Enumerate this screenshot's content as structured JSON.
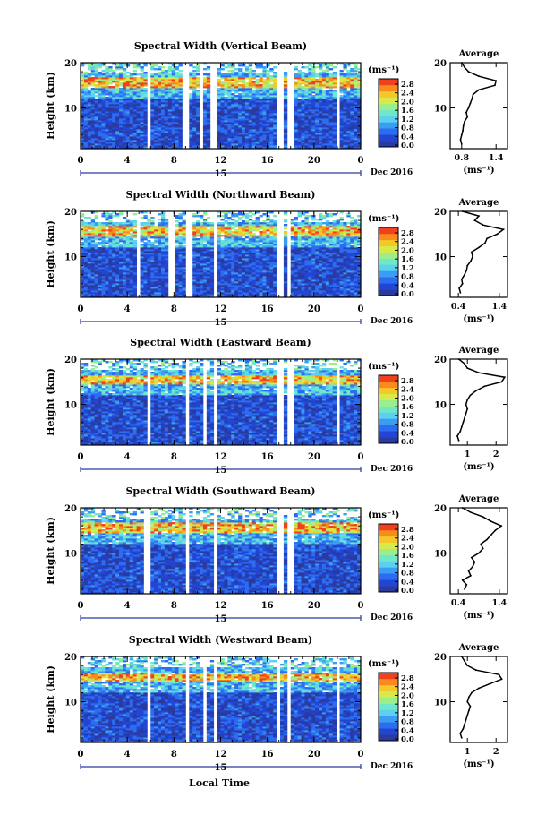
{
  "colors": {
    "colormap": [
      "#2a3a9e",
      "#2246d4",
      "#2c6cf0",
      "#3a9cf2",
      "#5cd0f0",
      "#6ee8c8",
      "#9cee8a",
      "#d8ea4a",
      "#f4c828",
      "#f88a1e",
      "#f0401c"
    ],
    "background": "#ffffff"
  },
  "icons": {
    "axis_arrow": "dash-arrow-icon"
  },
  "shared": {
    "day_label": "15",
    "date_label": "Dec 2016",
    "bottom_xlabel": "Local Time"
  },
  "chart_data": [
    {
      "type": "heatmap",
      "title": "Spectral Width (Vertical Beam)",
      "ylabel": "Height (km)",
      "x_ticks": [
        "0",
        "4",
        "8",
        "12",
        "16",
        "20",
        "0"
      ],
      "xlim": [
        0,
        24
      ],
      "y_ticks": [
        "10",
        "20"
      ],
      "ylim": [
        1,
        20
      ],
      "gaps_hours": [
        [
          5.6,
          6.0
        ],
        [
          8.8,
          9.3
        ],
        [
          10.2,
          10.6
        ],
        [
          11.2,
          11.6
        ],
        [
          16.9,
          17.3
        ],
        [
          17.8,
          18.3
        ],
        [
          21.9,
          22.3
        ]
      ],
      "high_band_km": [
        14.5,
        16.8
      ],
      "colorbar": {
        "unit": "(ms⁻¹)",
        "ticks": [
          "0.0",
          "0.4",
          "0.8",
          "1.2",
          "1.6",
          "2.0",
          "2.4",
          "2.8"
        ]
      },
      "average": {
        "title": "Average",
        "xlabel": "(ms⁻¹)",
        "x_ticks": [
          "0.8",
          "1.4"
        ],
        "y_ticks": [
          "10",
          "20"
        ],
        "xlim": [
          0.6,
          1.6
        ],
        "heights_km": [
          2,
          3,
          4,
          5,
          6,
          7,
          8,
          9,
          10,
          11,
          12,
          13,
          14,
          15,
          16,
          17,
          18,
          19,
          20
        ],
        "values": [
          0.8,
          0.78,
          0.8,
          0.82,
          0.83,
          0.85,
          0.9,
          0.88,
          0.92,
          0.95,
          0.98,
          1.0,
          1.1,
          1.38,
          1.4,
          1.1,
          0.92,
          0.85,
          0.8
        ]
      }
    },
    {
      "type": "heatmap",
      "title": "Spectral Width (Northward Beam)",
      "ylabel": "Height (km)",
      "x_ticks": [
        "0",
        "4",
        "8",
        "12",
        "16",
        "20",
        "0"
      ],
      "xlim": [
        0,
        24
      ],
      "y_ticks": [
        "10",
        "20"
      ],
      "ylim": [
        1,
        20
      ],
      "gaps_hours": [
        [
          4.7,
          5.0
        ],
        [
          7.6,
          8.0
        ],
        [
          9.1,
          9.5
        ],
        [
          11.4,
          11.8
        ],
        [
          16.9,
          17.3
        ],
        [
          17.8,
          18.1
        ]
      ],
      "high_band_km": [
        14.5,
        17.0
      ],
      "colorbar": {
        "unit": "(ms⁻¹)",
        "ticks": [
          "0.0",
          "0.4",
          "0.8",
          "1.2",
          "1.6",
          "2.0",
          "2.4",
          "2.8"
        ]
      },
      "average": {
        "title": "Average",
        "xlabel": "(ms⁻¹)",
        "x_ticks": [
          "0.4",
          "1.4"
        ],
        "y_ticks": [
          "10",
          "20"
        ],
        "xlim": [
          0.2,
          1.6
        ],
        "heights_km": [
          2,
          3,
          4,
          5,
          6,
          7,
          8,
          9,
          10,
          11,
          12,
          13,
          14,
          15,
          16,
          17,
          18,
          19,
          20
        ],
        "values": [
          0.45,
          0.42,
          0.5,
          0.48,
          0.55,
          0.6,
          0.62,
          0.7,
          0.75,
          0.72,
          0.9,
          1.05,
          1.1,
          1.35,
          1.5,
          1.0,
          0.8,
          0.9,
          0.5
        ]
      }
    },
    {
      "type": "heatmap",
      "title": "Spectral Width (Eastward Beam)",
      "ylabel": "Height (km)",
      "x_ticks": [
        "0",
        "4",
        "8",
        "12",
        "16",
        "20",
        "0"
      ],
      "xlim": [
        0,
        24
      ],
      "y_ticks": [
        "10",
        "20"
      ],
      "ylim": [
        1,
        20
      ],
      "gaps_hours": [
        [
          5.7,
          6.0
        ],
        [
          9.1,
          9.4
        ],
        [
          10.4,
          10.7
        ],
        [
          11.5,
          11.8
        ],
        [
          16.9,
          17.3
        ],
        [
          17.8,
          18.2
        ],
        [
          21.8,
          22.1
        ]
      ],
      "high_band_km": [
        14.5,
        16.5
      ],
      "colorbar": {
        "unit": "(ms⁻¹)",
        "ticks": [
          "0.0",
          "0.4",
          "0.8",
          "1.2",
          "1.6",
          "2.0",
          "2.4",
          "2.8"
        ]
      },
      "average": {
        "title": "Average",
        "xlabel": "(ms⁻¹)",
        "x_ticks": [
          "1",
          "2"
        ],
        "y_ticks": [
          "10",
          "20"
        ],
        "xlim": [
          0.4,
          2.4
        ],
        "heights_km": [
          2,
          3,
          4,
          5,
          6,
          7,
          8,
          9,
          10,
          11,
          12,
          13,
          14,
          15,
          16,
          17,
          18,
          19,
          20
        ],
        "values": [
          0.7,
          0.65,
          0.75,
          0.8,
          0.85,
          0.9,
          0.95,
          1.0,
          0.95,
          1.0,
          1.1,
          1.3,
          1.6,
          2.2,
          2.3,
          1.4,
          1.0,
          0.9,
          0.7
        ]
      }
    },
    {
      "type": "heatmap",
      "title": "Spectral Width (Southward Beam)",
      "ylabel": "Height (km)",
      "x_ticks": [
        "0",
        "4",
        "8",
        "12",
        "16",
        "20",
        "0"
      ],
      "xlim": [
        0,
        24
      ],
      "y_ticks": [
        "10",
        "20"
      ],
      "ylim": [
        1,
        20
      ],
      "gaps_hours": [
        [
          5.5,
          5.9
        ],
        [
          9.0,
          9.3
        ],
        [
          11.4,
          11.8
        ],
        [
          16.9,
          17.3
        ],
        [
          17.8,
          18.2
        ]
      ],
      "high_band_km": [
        14.5,
        16.8
      ],
      "colorbar": {
        "unit": "(ms⁻¹)",
        "ticks": [
          "0.0",
          "0.4",
          "0.8",
          "1.2",
          "1.6",
          "2.0",
          "2.4",
          "2.8"
        ]
      },
      "average": {
        "title": "Average",
        "xlabel": "(ms⁻¹)",
        "x_ticks": [
          "0.4",
          "1.4"
        ],
        "y_ticks": [
          "10",
          "20"
        ],
        "xlim": [
          0.2,
          1.6
        ],
        "heights_km": [
          2,
          3,
          4,
          5,
          6,
          7,
          8,
          9,
          10,
          11,
          12,
          13,
          14,
          15,
          16,
          17,
          18,
          19,
          20
        ],
        "values": [
          0.55,
          0.6,
          0.5,
          0.7,
          0.65,
          0.75,
          0.8,
          0.72,
          0.9,
          1.0,
          0.95,
          1.1,
          1.2,
          1.3,
          1.45,
          1.2,
          1.0,
          0.7,
          0.5
        ]
      }
    },
    {
      "type": "heatmap",
      "title": "Spectral Width (Westward Beam)",
      "ylabel": "Height (km)",
      "x_ticks": [
        "0",
        "4",
        "8",
        "12",
        "16",
        "20",
        "0"
      ],
      "xlim": [
        0,
        24
      ],
      "y_ticks": [
        "10",
        "20"
      ],
      "ylim": [
        1,
        20
      ],
      "gaps_hours": [
        [
          5.7,
          6.0
        ],
        [
          9.0,
          9.3
        ],
        [
          10.5,
          10.8
        ],
        [
          11.4,
          11.7
        ],
        [
          16.9,
          17.2
        ],
        [
          17.8,
          18.1
        ],
        [
          21.8,
          22.1
        ]
      ],
      "high_band_km": [
        14.5,
        16.5
      ],
      "colorbar": {
        "unit": "(ms⁻¹)",
        "ticks": [
          "0.0",
          "0.4",
          "0.8",
          "1.2",
          "1.6",
          "2.0",
          "2.4",
          "2.8"
        ]
      },
      "average": {
        "title": "Average",
        "xlabel": "(ms⁻¹)",
        "x_ticks": [
          "1",
          "2"
        ],
        "y_ticks": [
          "10",
          "20"
        ],
        "xlim": [
          0.4,
          2.4
        ],
        "heights_km": [
          2,
          3,
          4,
          5,
          6,
          7,
          8,
          9,
          10,
          11,
          12,
          13,
          14,
          15,
          16,
          17,
          18,
          19,
          20
        ],
        "values": [
          0.8,
          0.75,
          0.85,
          0.9,
          0.95,
          1.0,
          1.05,
          1.1,
          1.0,
          1.05,
          1.15,
          1.4,
          1.8,
          2.2,
          2.1,
          1.3,
          1.0,
          0.9,
          0.8
        ]
      }
    }
  ]
}
